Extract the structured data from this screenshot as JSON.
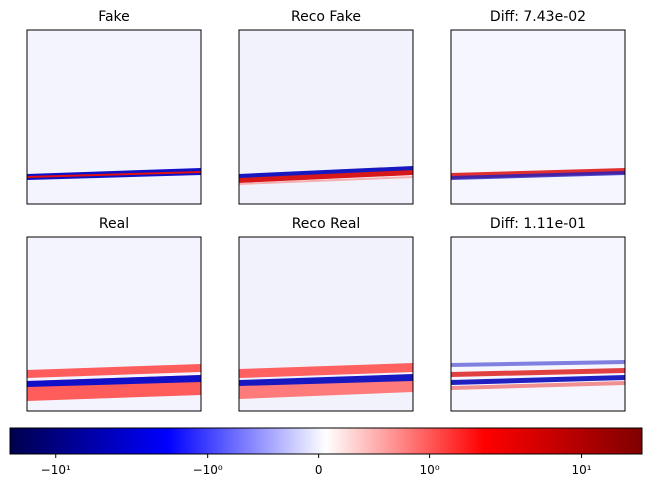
{
  "panels": [
    {
      "title": "Fake"
    },
    {
      "title": "Reco Fake"
    },
    {
      "title": "Diff: 7.43e-02"
    },
    {
      "title": "Real"
    },
    {
      "title": "Reco Real"
    },
    {
      "title": "Diff: 1.11e-01"
    }
  ],
  "colorbar": {
    "scale": "symlog",
    "linthresh": 1,
    "lim": [
      -20,
      25
    ],
    "ticks": [
      {
        "value": -10,
        "label": "−10¹"
      },
      {
        "value": -1,
        "label": "−10⁰"
      },
      0,
      {
        "value": 1,
        "label": "10⁰"
      },
      {
        "value": 10,
        "label": "10¹"
      }
    ]
  }
}
